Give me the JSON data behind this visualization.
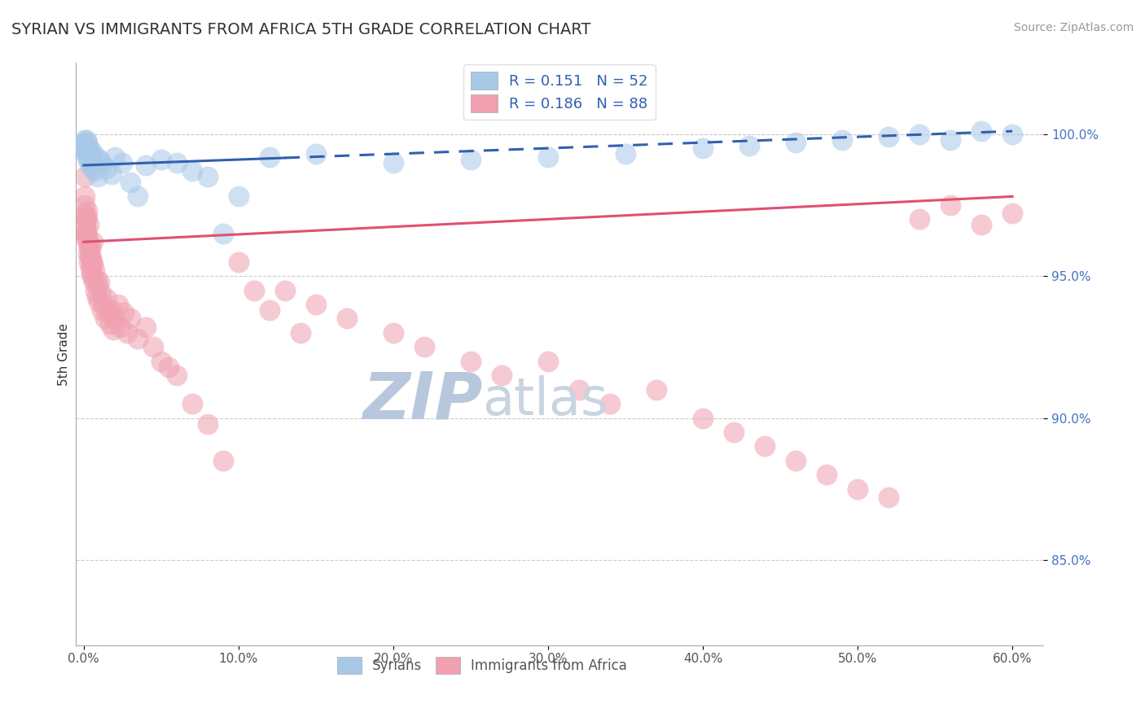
{
  "title": "SYRIAN VS IMMIGRANTS FROM AFRICA 5TH GRADE CORRELATION CHART",
  "source": "Source: ZipAtlas.com",
  "xlabel_ticks": [
    "0.0%",
    "10.0%",
    "20.0%",
    "30.0%",
    "40.0%",
    "50.0%",
    "60.0%"
  ],
  "xlabel_vals": [
    0.0,
    10.0,
    20.0,
    30.0,
    40.0,
    50.0,
    60.0
  ],
  "ylabel_ticks": [
    "85.0%",
    "90.0%",
    "95.0%",
    "100.0%"
  ],
  "ylabel_vals": [
    85.0,
    90.0,
    95.0,
    100.0
  ],
  "ylim": [
    82.0,
    102.5
  ],
  "xlim": [
    -0.5,
    62.0
  ],
  "syrians_R": 0.151,
  "syrians_N": 52,
  "africa_R": 0.186,
  "africa_N": 88,
  "blue_color": "#A8C8E8",
  "pink_color": "#F0A0B0",
  "blue_line_color": "#3060B0",
  "pink_line_color": "#E05070",
  "watermark_zip": "ZIP",
  "watermark_atlas": "atlas",
  "watermark_color_zip": "#B8C8DC",
  "watermark_color_atlas": "#C8D4E0",
  "ylabel_label": "5th Grade",
  "blue_line_y0": 98.9,
  "blue_line_y1": 100.1,
  "pink_line_y0": 96.2,
  "pink_line_y1": 97.8,
  "blue_dashed_start_x": 13.0,
  "syrians_x": [
    0.05,
    0.07,
    0.09,
    0.11,
    0.13,
    0.15,
    0.17,
    0.19,
    0.21,
    0.23,
    0.25,
    0.27,
    0.3,
    0.35,
    0.4,
    0.45,
    0.5,
    0.55,
    0.6,
    0.7,
    0.8,
    0.9,
    1.0,
    1.2,
    1.5,
    1.8,
    2.0,
    2.5,
    3.0,
    3.5,
    4.0,
    5.0,
    6.0,
    7.0,
    8.0,
    9.0,
    10.0,
    12.0,
    15.0,
    20.0,
    25.0,
    30.0,
    35.0,
    40.0,
    43.0,
    46.0,
    49.0,
    52.0,
    54.0,
    56.0,
    58.0,
    60.0
  ],
  "syrians_y": [
    99.8,
    99.5,
    99.7,
    99.6,
    99.4,
    99.8,
    99.5,
    99.3,
    99.6,
    99.2,
    99.7,
    99.4,
    99.1,
    99.5,
    98.9,
    99.3,
    99.0,
    99.4,
    98.8,
    98.7,
    99.2,
    98.5,
    99.1,
    99.0,
    98.8,
    98.6,
    99.2,
    99.0,
    98.3,
    97.8,
    98.9,
    99.1,
    99.0,
    98.7,
    98.5,
    96.5,
    97.8,
    99.2,
    99.3,
    99.0,
    99.1,
    99.2,
    99.3,
    99.5,
    99.6,
    99.7,
    99.8,
    99.9,
    100.0,
    99.8,
    100.1,
    100.0
  ],
  "africa_x": [
    0.05,
    0.08,
    0.1,
    0.12,
    0.15,
    0.18,
    0.2,
    0.22,
    0.25,
    0.28,
    0.3,
    0.33,
    0.35,
    0.38,
    0.4,
    0.43,
    0.45,
    0.48,
    0.5,
    0.55,
    0.6,
    0.65,
    0.7,
    0.75,
    0.8,
    0.85,
    0.9,
    0.95,
    1.0,
    1.1,
    1.2,
    1.3,
    1.4,
    1.5,
    1.6,
    1.7,
    1.8,
    1.9,
    2.0,
    2.2,
    2.4,
    2.6,
    2.8,
    3.0,
    3.5,
    4.0,
    4.5,
    5.0,
    5.5,
    6.0,
    7.0,
    8.0,
    9.0,
    10.0,
    11.0,
    12.0,
    13.0,
    14.0,
    15.0,
    17.0,
    20.0,
    22.0,
    25.0,
    27.0,
    30.0,
    32.0,
    34.0,
    37.0,
    40.0,
    42.0,
    44.0,
    46.0,
    48.0,
    50.0,
    52.0,
    54.0,
    56.0,
    58.0,
    60.0,
    0.06,
    0.09,
    0.14,
    0.16,
    0.23,
    0.32,
    0.42,
    0.52,
    0.62
  ],
  "africa_y": [
    97.5,
    97.2,
    96.8,
    96.5,
    97.0,
    96.3,
    96.6,
    97.1,
    96.4,
    95.8,
    96.2,
    96.0,
    95.5,
    96.1,
    95.7,
    95.3,
    95.8,
    95.1,
    95.6,
    95.0,
    95.4,
    94.8,
    95.2,
    94.5,
    94.9,
    94.3,
    94.7,
    94.1,
    94.8,
    94.4,
    93.8,
    94.0,
    93.5,
    94.2,
    93.7,
    93.3,
    93.8,
    93.1,
    93.5,
    94.0,
    93.2,
    93.7,
    93.0,
    93.5,
    92.8,
    93.2,
    92.5,
    92.0,
    91.8,
    91.5,
    90.5,
    89.8,
    88.5,
    95.5,
    94.5,
    93.8,
    94.5,
    93.0,
    94.0,
    93.5,
    93.0,
    92.5,
    92.0,
    91.5,
    92.0,
    91.0,
    90.5,
    91.0,
    90.0,
    89.5,
    89.0,
    88.5,
    88.0,
    87.5,
    87.2,
    97.0,
    97.5,
    96.8,
    97.2,
    98.5,
    97.8,
    97.0,
    96.5,
    97.3,
    96.8,
    96.0,
    95.5,
    96.2
  ]
}
